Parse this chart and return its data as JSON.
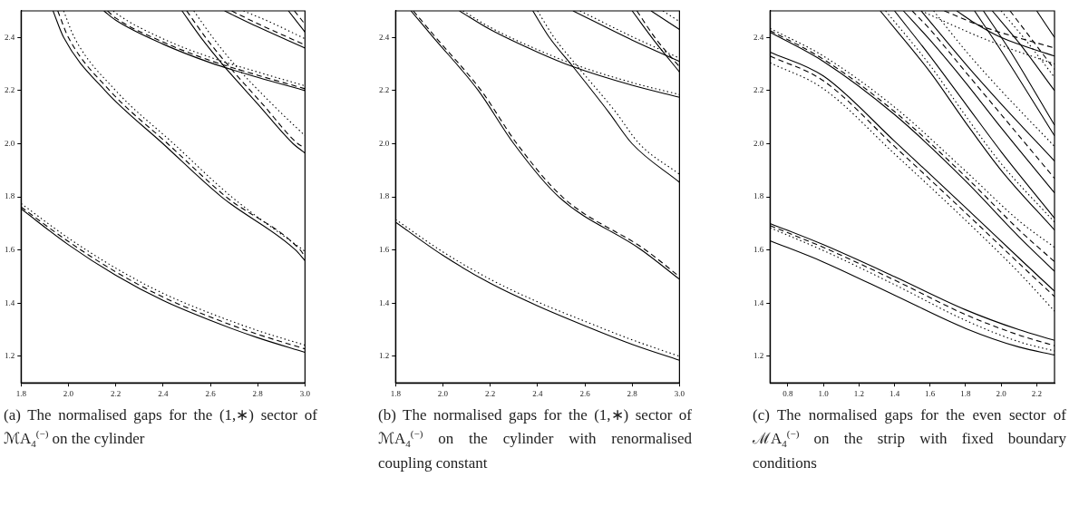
{
  "chart_data": [
    {
      "type": "line",
      "title": "(a) The normalised gaps for the (1,∗) sector of ℳA$_{4}$$^{(−)}$ on the cylinder",
      "xlim": [
        1.8,
        3.0
      ],
      "xticks": [
        {
          "value": 1.8,
          "label": "1.8"
        },
        {
          "value": 2.0,
          "label": "2.0"
        },
        {
          "value": 2.2,
          "label": "2.2"
        },
        {
          "value": 2.4,
          "label": "2.4"
        },
        {
          "value": 2.6,
          "label": "2.6"
        },
        {
          "value": 2.8,
          "label": "2.8"
        },
        {
          "value": 3.0,
          "label": "3.0"
        }
      ],
      "ylim": [
        1.1,
        2.5
      ],
      "yticks": [
        {
          "value": 1.2,
          "label": "1.2"
        },
        {
          "value": 1.4,
          "label": "1.4"
        },
        {
          "value": 1.6,
          "label": "1.6"
        },
        {
          "value": 1.8,
          "label": "1.8"
        },
        {
          "value": 2.0,
          "label": "2.0"
        },
        {
          "value": 2.2,
          "label": "2.2"
        },
        {
          "value": 2.4,
          "label": "2.4"
        }
      ],
      "marker": "none",
      "series": [
        {
          "color": "#000000",
          "line_style": "solid",
          "x": [
            1.8,
            2.0,
            2.2,
            2.4,
            2.6,
            2.8,
            3.0
          ],
          "values": [
            1.755,
            1.62,
            1.505,
            1.41,
            1.335,
            1.27,
            1.215
          ]
        },
        {
          "color": "#000000",
          "line_style": "dashed",
          "x": [
            1.8,
            2.0,
            2.2,
            2.4,
            2.6,
            2.8,
            3.0
          ],
          "values": [
            1.762,
            1.632,
            1.518,
            1.423,
            1.348,
            1.283,
            1.228
          ]
        },
        {
          "color": "#000000",
          "line_style": "dotted",
          "x": [
            1.8,
            2.0,
            2.2,
            2.4,
            2.6,
            2.8,
            3.0
          ],
          "values": [
            1.775,
            1.645,
            1.532,
            1.437,
            1.362,
            1.297,
            1.242
          ]
        },
        {
          "color": "#000000",
          "line_style": "solid",
          "x": [
            1.935,
            1.98,
            2.155,
            2.4,
            2.647,
            2.96,
            3.0
          ],
          "values": [
            2.5,
            2.4,
            2.2,
            2.0,
            1.8,
            1.6,
            1.56
          ]
        },
        {
          "color": "#000000",
          "line_style": "dashed",
          "x": [
            1.955,
            2.0,
            2.175,
            2.42,
            2.667,
            2.98,
            3.0
          ],
          "values": [
            2.5,
            2.4,
            2.2,
            2.0,
            1.8,
            1.6,
            1.575
          ]
        },
        {
          "color": "#000000",
          "line_style": "dotted",
          "x": [
            1.98,
            2.025,
            2.2,
            2.445,
            2.69,
            3.0
          ],
          "values": [
            2.5,
            2.4,
            2.2,
            2.0,
            1.8,
            1.595
          ]
        },
        {
          "color": "#000000",
          "line_style": "solid",
          "x": [
            2.15,
            2.2,
            2.4,
            2.6,
            2.8,
            3.0
          ],
          "values": [
            2.5,
            2.465,
            2.375,
            2.305,
            2.25,
            2.2
          ]
        },
        {
          "color": "#000000",
          "line_style": "dashed",
          "x": [
            2.165,
            2.2,
            2.4,
            2.6,
            2.8,
            3.0
          ],
          "values": [
            2.5,
            2.473,
            2.383,
            2.313,
            2.258,
            2.207
          ]
        },
        {
          "color": "#000000",
          "line_style": "dotted",
          "x": [
            2.19,
            2.2,
            2.4,
            2.6,
            2.8,
            3.0
          ],
          "values": [
            2.5,
            2.492,
            2.395,
            2.325,
            2.27,
            2.218
          ]
        },
        {
          "color": "#000000",
          "line_style": "solid",
          "x": [
            2.48,
            2.56,
            2.66,
            2.8,
            2.95,
            3.0
          ],
          "values": [
            2.5,
            2.4,
            2.29,
            2.15,
            2.0,
            1.965
          ]
        },
        {
          "color": "#000000",
          "line_style": "dashed",
          "x": [
            2.5,
            2.58,
            2.68,
            2.82,
            2.97,
            3.0
          ],
          "values": [
            2.5,
            2.4,
            2.29,
            2.15,
            2.0,
            1.985
          ]
        },
        {
          "color": "#000000",
          "line_style": "dotted",
          "x": [
            2.53,
            2.61,
            2.71,
            2.86,
            3.0
          ],
          "values": [
            2.5,
            2.4,
            2.29,
            2.15,
            2.03
          ]
        },
        {
          "color": "#000000",
          "line_style": "solid",
          "x": [
            2.66,
            2.8,
            3.0
          ],
          "values": [
            2.5,
            2.44,
            2.36
          ]
        },
        {
          "color": "#000000",
          "line_style": "dashed",
          "x": [
            2.69,
            2.8,
            3.0
          ],
          "values": [
            2.5,
            2.452,
            2.372
          ]
        },
        {
          "color": "#000000",
          "line_style": "dotted",
          "x": [
            2.74,
            2.86,
            3.0
          ],
          "values": [
            2.5,
            2.455,
            2.395
          ]
        },
        {
          "color": "#000000",
          "line_style": "solid",
          "x": [
            2.93,
            3.0
          ],
          "values": [
            2.5,
            2.42
          ]
        },
        {
          "color": "#000000",
          "line_style": "dashed",
          "x": [
            2.955,
            3.0
          ],
          "values": [
            2.5,
            2.45
          ]
        }
      ]
    },
    {
      "type": "line",
      "title": "(b) The normalised gaps for the (1,∗) sector of ℳA$_{4}$$^{(−)}$ on the cylinder with renormalised coupling constant",
      "xlim": [
        1.8,
        3.0
      ],
      "xticks": [
        {
          "value": 1.8,
          "label": "1.8"
        },
        {
          "value": 2.0,
          "label": "2.0"
        },
        {
          "value": 2.2,
          "label": "2.2"
        },
        {
          "value": 2.4,
          "label": "2.4"
        },
        {
          "value": 2.6,
          "label": "2.6"
        },
        {
          "value": 2.8,
          "label": "2.8"
        },
        {
          "value": 3.0,
          "label": "3.0"
        }
      ],
      "ylim": [
        1.1,
        2.5
      ],
      "yticks": [
        {
          "value": 1.2,
          "label": "1.2"
        },
        {
          "value": 1.4,
          "label": "1.4"
        },
        {
          "value": 1.6,
          "label": "1.6"
        },
        {
          "value": 1.8,
          "label": "1.8"
        },
        {
          "value": 2.0,
          "label": "2.0"
        },
        {
          "value": 2.2,
          "label": "2.2"
        },
        {
          "value": 2.4,
          "label": "2.4"
        }
      ],
      "marker": "none",
      "series": [
        {
          "color": "#000000",
          "line_style": "solid",
          "x": [
            1.8,
            2.0,
            2.2,
            2.4,
            2.6,
            2.8,
            3.0
          ],
          "values": [
            1.705,
            1.58,
            1.475,
            1.39,
            1.315,
            1.245,
            1.185
          ]
        },
        {
          "color": "#000000",
          "line_style": "dotted",
          "x": [
            1.8,
            2.0,
            2.2,
            2.4,
            2.6,
            2.8,
            3.0
          ],
          "values": [
            1.715,
            1.593,
            1.49,
            1.405,
            1.332,
            1.262,
            1.2
          ]
        },
        {
          "color": "#000000",
          "line_style": "solid",
          "x": [
            1.865,
            1.96,
            2.15,
            2.3,
            2.49,
            2.84,
            3.0
          ],
          "values": [
            2.5,
            2.4,
            2.2,
            2.0,
            1.8,
            1.6,
            1.49
          ]
        },
        {
          "color": "#000000",
          "line_style": "dashed",
          "x": [
            1.875,
            1.97,
            2.162,
            2.313,
            2.505,
            2.857,
            3.0
          ],
          "values": [
            2.5,
            2.4,
            2.2,
            2.0,
            1.8,
            1.6,
            1.5
          ]
        },
        {
          "color": "#000000",
          "line_style": "solid",
          "x": [
            2.07,
            2.2,
            2.4,
            2.55,
            2.8,
            3.0
          ],
          "values": [
            2.5,
            2.43,
            2.345,
            2.29,
            2.22,
            2.175
          ]
        },
        {
          "color": "#000000",
          "line_style": "dotted",
          "x": [
            2.085,
            2.2,
            2.4,
            2.55,
            2.8,
            3.0
          ],
          "values": [
            2.5,
            2.438,
            2.354,
            2.3,
            2.23,
            2.185
          ]
        },
        {
          "color": "#000000",
          "line_style": "solid",
          "x": [
            2.38,
            2.45,
            2.55,
            2.7,
            2.8,
            3.0
          ],
          "values": [
            2.5,
            2.4,
            2.29,
            2.12,
            2.0,
            1.855
          ]
        },
        {
          "color": "#000000",
          "line_style": "dotted",
          "x": [
            2.4,
            2.47,
            2.57,
            2.73,
            2.83,
            3.0
          ],
          "values": [
            2.5,
            2.4,
            2.29,
            2.12,
            2.0,
            1.885
          ]
        },
        {
          "color": "#000000",
          "line_style": "solid",
          "x": [
            2.55,
            2.8,
            3.0
          ],
          "values": [
            2.5,
            2.39,
            2.31
          ]
        },
        {
          "color": "#000000",
          "line_style": "dotted",
          "x": [
            2.58,
            2.8,
            3.0
          ],
          "values": [
            2.5,
            2.403,
            2.322
          ]
        },
        {
          "color": "#000000",
          "line_style": "solid",
          "x": [
            2.8,
            2.9,
            3.0
          ],
          "values": [
            2.5,
            2.38,
            2.27
          ]
        },
        {
          "color": "#000000",
          "line_style": "dashed",
          "x": [
            2.82,
            2.9,
            3.0
          ],
          "values": [
            2.5,
            2.395,
            2.29
          ]
        },
        {
          "color": "#000000",
          "line_style": "solid",
          "x": [
            2.88,
            3.0
          ],
          "values": [
            2.5,
            2.43
          ]
        },
        {
          "color": "#000000",
          "line_style": "dotted",
          "x": [
            2.93,
            3.0
          ],
          "values": [
            2.5,
            2.46
          ]
        }
      ]
    },
    {
      "type": "line",
      "title": "(c) The normalised gaps for the even sector of ℳA$_{4}$$^{(−)}$ on the strip with fixed boundary conditions",
      "xlim": [
        0.7,
        2.3
      ],
      "xticks": [
        0.8,
        {
          "value": 1.0,
          "label": "1.0"
        },
        1.2,
        1.4,
        1.6,
        1.8,
        {
          "value": 2.0,
          "label": "2.0"
        },
        2.2
      ],
      "ylim": [
        1.1,
        2.5
      ],
      "yticks": [
        {
          "value": 1.2,
          "label": "1.2"
        },
        {
          "value": 1.4,
          "label": "1.4"
        },
        {
          "value": 1.6,
          "label": "1.6"
        },
        {
          "value": 1.8,
          "label": "1.8"
        },
        {
          "value": 2.0,
          "label": "2.0"
        },
        {
          "value": 2.2,
          "label": "2.2"
        },
        {
          "value": 2.4,
          "label": "2.4"
        }
      ],
      "marker": "none",
      "series": [
        {
          "color": "#000000",
          "line_style": "solid",
          "x": [
            0.7,
            1.0,
            1.4,
            1.8,
            2.1,
            2.3
          ],
          "values": [
            1.635,
            1.555,
            1.43,
            1.305,
            1.235,
            1.205
          ]
        },
        {
          "color": "#000000",
          "line_style": "solid",
          "x": [
            0.7,
            1.0,
            1.4,
            1.8,
            2.1,
            2.3
          ],
          "values": [
            1.7,
            1.62,
            1.5,
            1.375,
            1.3,
            1.26
          ]
        },
        {
          "color": "#000000",
          "line_style": "dashed",
          "x": [
            0.7,
            1.0,
            1.4,
            1.8,
            2.1,
            2.3
          ],
          "values": [
            1.692,
            1.61,
            1.487,
            1.357,
            1.28,
            1.24
          ]
        },
        {
          "color": "#000000",
          "line_style": "dotted",
          "x": [
            0.7,
            1.0,
            1.4,
            1.8,
            2.1,
            2.3
          ],
          "values": [
            1.684,
            1.598,
            1.47,
            1.335,
            1.255,
            1.22
          ]
        },
        {
          "color": "#000000",
          "line_style": "solid",
          "x": [
            0.7,
            1.0,
            1.4,
            1.8,
            2.1,
            2.3
          ],
          "values": [
            2.42,
            2.31,
            2.11,
            1.86,
            1.65,
            1.52
          ]
        },
        {
          "color": "#000000",
          "line_style": "dashed",
          "x": [
            0.7,
            1.0,
            1.4,
            1.8,
            2.1,
            2.3
          ],
          "values": [
            2.426,
            2.318,
            2.121,
            1.876,
            1.676,
            1.556
          ]
        },
        {
          "color": "#000000",
          "line_style": "dotted",
          "x": [
            0.7,
            1.0,
            1.4,
            1.8,
            2.1,
            2.3
          ],
          "values": [
            2.434,
            2.33,
            2.138,
            1.897,
            1.71,
            1.61
          ]
        },
        {
          "color": "#000000",
          "line_style": "solid",
          "x": [
            0.7,
            1.0,
            1.4,
            1.8,
            2.1,
            2.3
          ],
          "values": [
            2.345,
            2.255,
            2.01,
            1.76,
            1.57,
            1.445
          ]
        },
        {
          "color": "#000000",
          "line_style": "dashed",
          "x": [
            0.7,
            1.0,
            1.4,
            1.8,
            2.1,
            2.3
          ],
          "values": [
            2.33,
            2.237,
            1.99,
            1.74,
            1.55,
            1.425
          ]
        },
        {
          "color": "#000000",
          "line_style": "dotted",
          "x": [
            0.7,
            1.0,
            1.4,
            1.8,
            2.1,
            2.3
          ],
          "values": [
            2.305,
            2.207,
            1.962,
            1.712,
            1.515,
            1.37
          ]
        },
        {
          "color": "#000000",
          "line_style": "solid",
          "x": [
            1.32,
            1.6,
            1.8,
            2.0,
            2.3
          ],
          "values": [
            2.5,
            2.27,
            2.08,
            1.9,
            1.675
          ]
        },
        {
          "color": "#000000",
          "line_style": "dotted",
          "x": [
            1.35,
            1.6,
            1.8,
            2.0,
            2.3
          ],
          "values": [
            2.5,
            2.295,
            2.105,
            1.925,
            1.705
          ]
        },
        {
          "color": "#000000",
          "line_style": "solid",
          "x": [
            1.4,
            1.6,
            1.8,
            2.0,
            2.3
          ],
          "values": [
            2.5,
            2.33,
            2.15,
            1.97,
            1.72
          ]
        },
        {
          "color": "#000000",
          "line_style": "solid",
          "x": [
            1.45,
            1.6,
            1.8,
            2.0,
            2.3
          ],
          "values": [
            2.5,
            2.39,
            2.23,
            2.06,
            1.815
          ]
        },
        {
          "color": "#000000",
          "line_style": "dashed",
          "x": [
            1.5,
            1.6,
            1.8,
            2.0,
            2.3
          ],
          "values": [
            2.5,
            2.43,
            2.27,
            2.11,
            1.87
          ]
        },
        {
          "color": "#000000",
          "line_style": "solid",
          "x": [
            1.55,
            1.8,
            2.0,
            2.3
          ],
          "values": [
            2.5,
            2.3,
            2.15,
            1.935
          ]
        },
        {
          "color": "#000000",
          "line_style": "dotted",
          "x": [
            1.62,
            1.8,
            2.0,
            2.3
          ],
          "values": [
            2.5,
            2.35,
            2.2,
            1.99
          ]
        },
        {
          "color": "#000000",
          "line_style": "solid",
          "x": [
            1.75,
            1.85,
            2.0,
            2.3
          ],
          "values": [
            2.5,
            2.455,
            2.4,
            2.33
          ]
        },
        {
          "color": "#000000",
          "line_style": "solid",
          "x": [
            1.85,
            2.0,
            2.3
          ],
          "values": [
            2.5,
            2.35,
            2.03
          ]
        },
        {
          "color": "#000000",
          "line_style": "solid",
          "x": [
            1.9,
            2.05,
            2.3
          ],
          "values": [
            2.5,
            2.35,
            2.07
          ]
        },
        {
          "color": "#000000",
          "line_style": "solid",
          "x": [
            1.95,
            2.1,
            2.3
          ],
          "values": [
            2.5,
            2.38,
            2.2
          ]
        },
        {
          "color": "#000000",
          "line_style": "dotted",
          "x": [
            1.55,
            1.85,
            2.0,
            2.3
          ],
          "values": [
            2.5,
            2.41,
            2.37,
            2.3
          ]
        },
        {
          "color": "#000000",
          "line_style": "dashed",
          "x": [
            1.68,
            1.9,
            2.3
          ],
          "values": [
            2.5,
            2.44,
            2.36
          ]
        },
        {
          "color": "#000000",
          "line_style": "solid",
          "x": [
            2.2,
            2.3
          ],
          "values": [
            2.5,
            2.4
          ]
        },
        {
          "color": "#000000",
          "line_style": "dotted",
          "x": [
            2.0,
            2.15,
            2.3
          ],
          "values": [
            2.5,
            2.38,
            2.25
          ]
        },
        {
          "color": "#000000",
          "line_style": "dashed",
          "x": [
            2.05,
            2.3
          ],
          "values": [
            2.5,
            2.28
          ]
        }
      ]
    }
  ]
}
